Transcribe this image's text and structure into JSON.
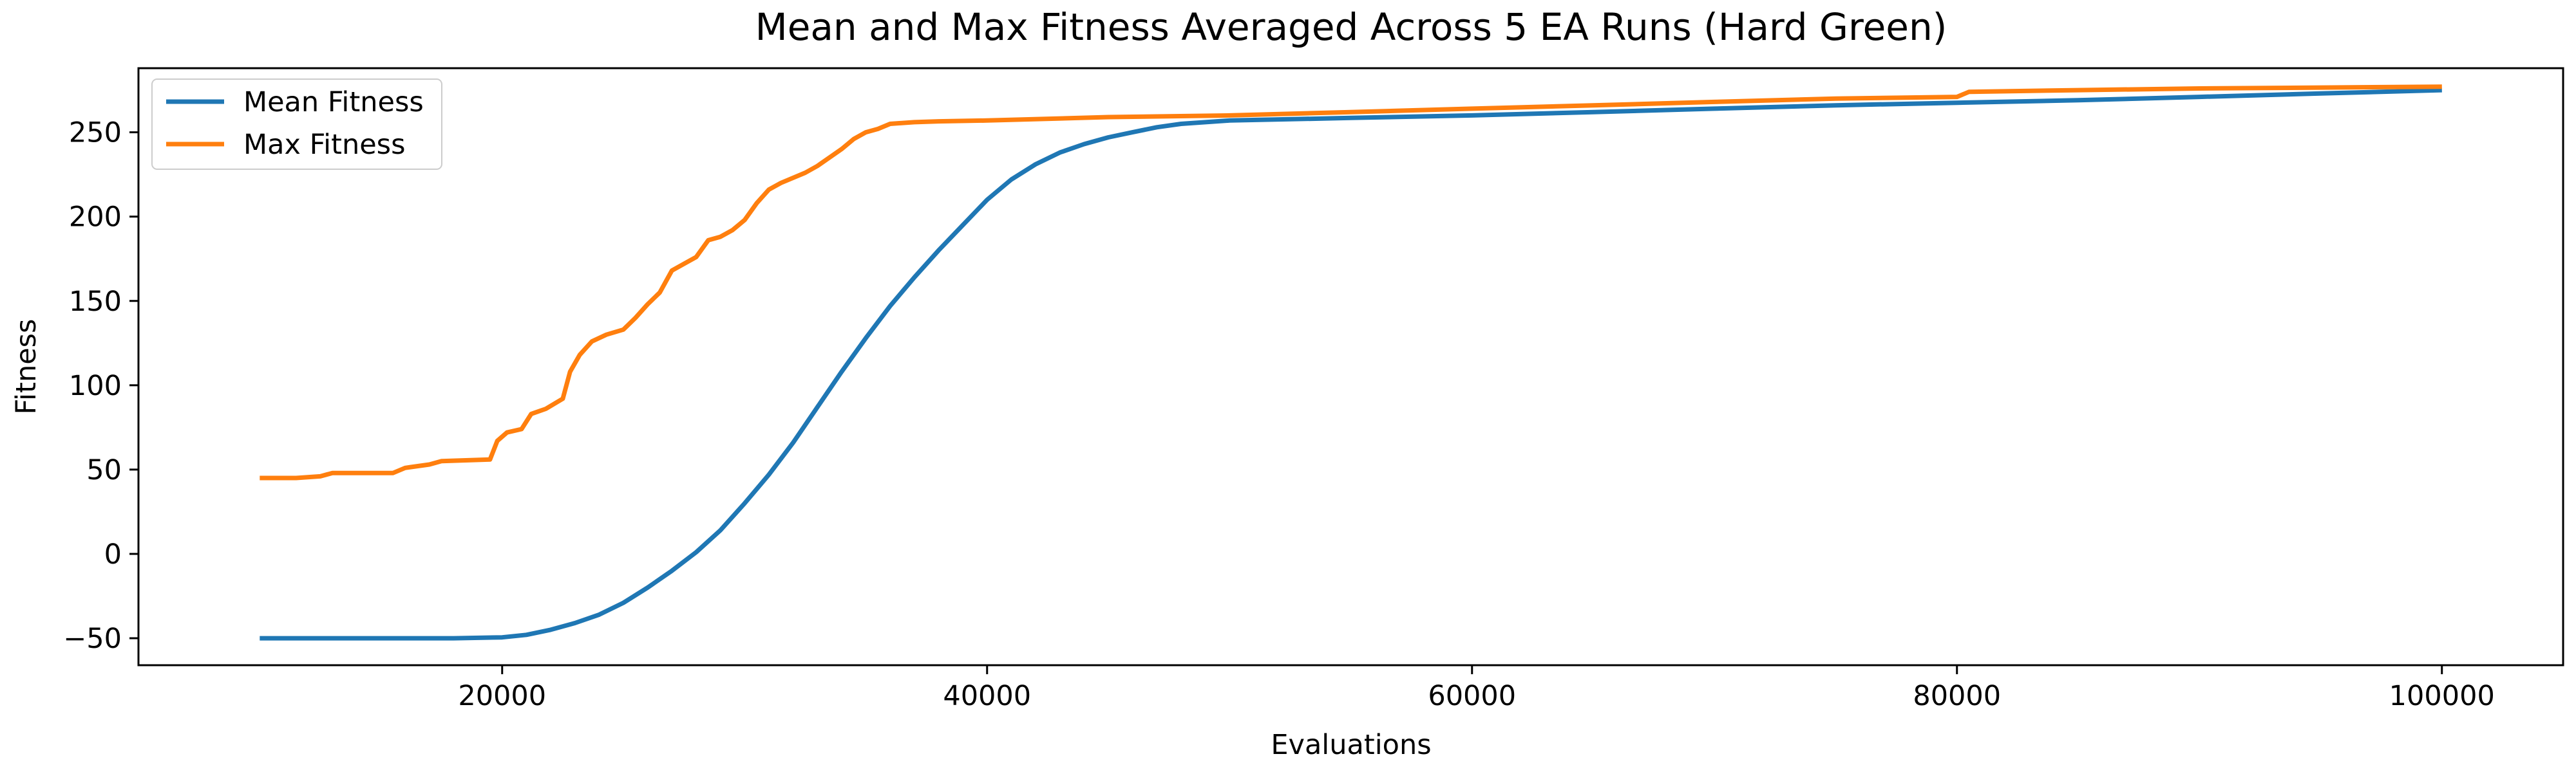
{
  "chart_data": {
    "type": "line",
    "title": "Mean and Max Fitness Averaged Across 5 EA Runs (Hard Green)",
    "xlabel": "Evaluations",
    "ylabel": "Fitness",
    "xlim": [
      5000,
      105000
    ],
    "ylim": [
      -66,
      288
    ],
    "xticks": [
      20000,
      40000,
      60000,
      80000,
      100000
    ],
    "yticks": [
      -50,
      0,
      50,
      100,
      150,
      200,
      250
    ],
    "grid": false,
    "legend": {
      "position": "top-left"
    },
    "series": [
      {
        "name": "Mean Fitness",
        "color": "#1f77b4",
        "points": [
          [
            10000,
            -50
          ],
          [
            12000,
            -50
          ],
          [
            14000,
            -50
          ],
          [
            16000,
            -50
          ],
          [
            18000,
            -50
          ],
          [
            20000,
            -49.5
          ],
          [
            21000,
            -48
          ],
          [
            22000,
            -45
          ],
          [
            23000,
            -41
          ],
          [
            24000,
            -36
          ],
          [
            25000,
            -29
          ],
          [
            26000,
            -20
          ],
          [
            27000,
            -10
          ],
          [
            28000,
            1
          ],
          [
            29000,
            14
          ],
          [
            30000,
            30
          ],
          [
            31000,
            47
          ],
          [
            32000,
            66
          ],
          [
            33000,
            87
          ],
          [
            34000,
            108
          ],
          [
            35000,
            128
          ],
          [
            36000,
            147
          ],
          [
            37000,
            164
          ],
          [
            38000,
            180
          ],
          [
            39000,
            195
          ],
          [
            40000,
            210
          ],
          [
            41000,
            222
          ],
          [
            42000,
            231
          ],
          [
            43000,
            238
          ],
          [
            44000,
            243
          ],
          [
            45000,
            247
          ],
          [
            46000,
            250
          ],
          [
            47000,
            253
          ],
          [
            48000,
            255
          ],
          [
            50000,
            257
          ],
          [
            55000,
            258.5
          ],
          [
            60000,
            260
          ],
          [
            65000,
            262
          ],
          [
            70000,
            264
          ],
          [
            75000,
            266
          ],
          [
            80000,
            267.5
          ],
          [
            85000,
            269
          ],
          [
            90000,
            271
          ],
          [
            95000,
            273
          ],
          [
            100000,
            275
          ]
        ]
      },
      {
        "name": "Max Fitness",
        "color": "#ff7f0e",
        "points": [
          [
            10000,
            45
          ],
          [
            11500,
            45
          ],
          [
            12500,
            46
          ],
          [
            13000,
            48
          ],
          [
            15500,
            48
          ],
          [
            16000,
            51
          ],
          [
            17000,
            53
          ],
          [
            17500,
            55
          ],
          [
            19500,
            56
          ],
          [
            19800,
            67
          ],
          [
            20200,
            72
          ],
          [
            20800,
            74
          ],
          [
            21200,
            83
          ],
          [
            21800,
            86
          ],
          [
            22500,
            92
          ],
          [
            22800,
            108
          ],
          [
            23200,
            118
          ],
          [
            23700,
            126
          ],
          [
            24300,
            130
          ],
          [
            25000,
            133
          ],
          [
            25500,
            140
          ],
          [
            26000,
            148
          ],
          [
            26500,
            155
          ],
          [
            27000,
            168
          ],
          [
            27500,
            172
          ],
          [
            28000,
            176
          ],
          [
            28500,
            186
          ],
          [
            29000,
            188
          ],
          [
            29500,
            192
          ],
          [
            30000,
            198
          ],
          [
            30500,
            208
          ],
          [
            31000,
            216
          ],
          [
            31500,
            220
          ],
          [
            32500,
            226
          ],
          [
            33000,
            230
          ],
          [
            33500,
            235
          ],
          [
            34000,
            240
          ],
          [
            34500,
            246
          ],
          [
            35000,
            250
          ],
          [
            35500,
            252
          ],
          [
            36000,
            255
          ],
          [
            37000,
            256
          ],
          [
            38000,
            256.5
          ],
          [
            40000,
            257
          ],
          [
            45000,
            259
          ],
          [
            50000,
            260
          ],
          [
            55000,
            262
          ],
          [
            60000,
            264
          ],
          [
            65000,
            266
          ],
          [
            70000,
            268
          ],
          [
            75000,
            270
          ],
          [
            80000,
            271
          ],
          [
            80500,
            274
          ],
          [
            85000,
            275
          ],
          [
            90000,
            276
          ],
          [
            95000,
            276.5
          ],
          [
            100000,
            277
          ]
        ]
      }
    ]
  }
}
